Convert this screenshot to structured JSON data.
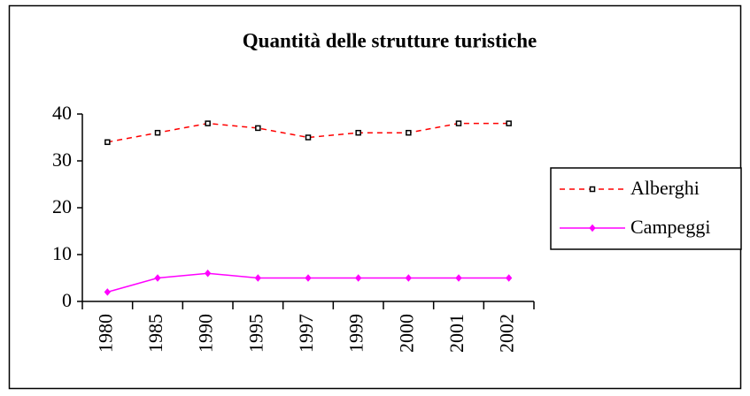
{
  "chart_data": {
    "type": "line",
    "title": "Quantità delle strutture turistiche",
    "categories": [
      "1980",
      "1985",
      "1990",
      "1995",
      "1997",
      "1999",
      "2000",
      "2001",
      "2002"
    ],
    "series": [
      {
        "name": "Alberghi",
        "color": "#ff0000",
        "line_style": "dashed",
        "marker": "square",
        "values": [
          34,
          36,
          38,
          37,
          35,
          36,
          36,
          38,
          38
        ]
      },
      {
        "name": "Campeggi",
        "color": "#ff00ff",
        "line_style": "solid",
        "marker": "diamond",
        "values": [
          2,
          5,
          6,
          5,
          5,
          5,
          5,
          5,
          5
        ]
      }
    ],
    "ylim": [
      0,
      40
    ],
    "yticks": [
      0,
      10,
      20,
      30,
      40
    ],
    "grid": false,
    "legend": "right"
  }
}
